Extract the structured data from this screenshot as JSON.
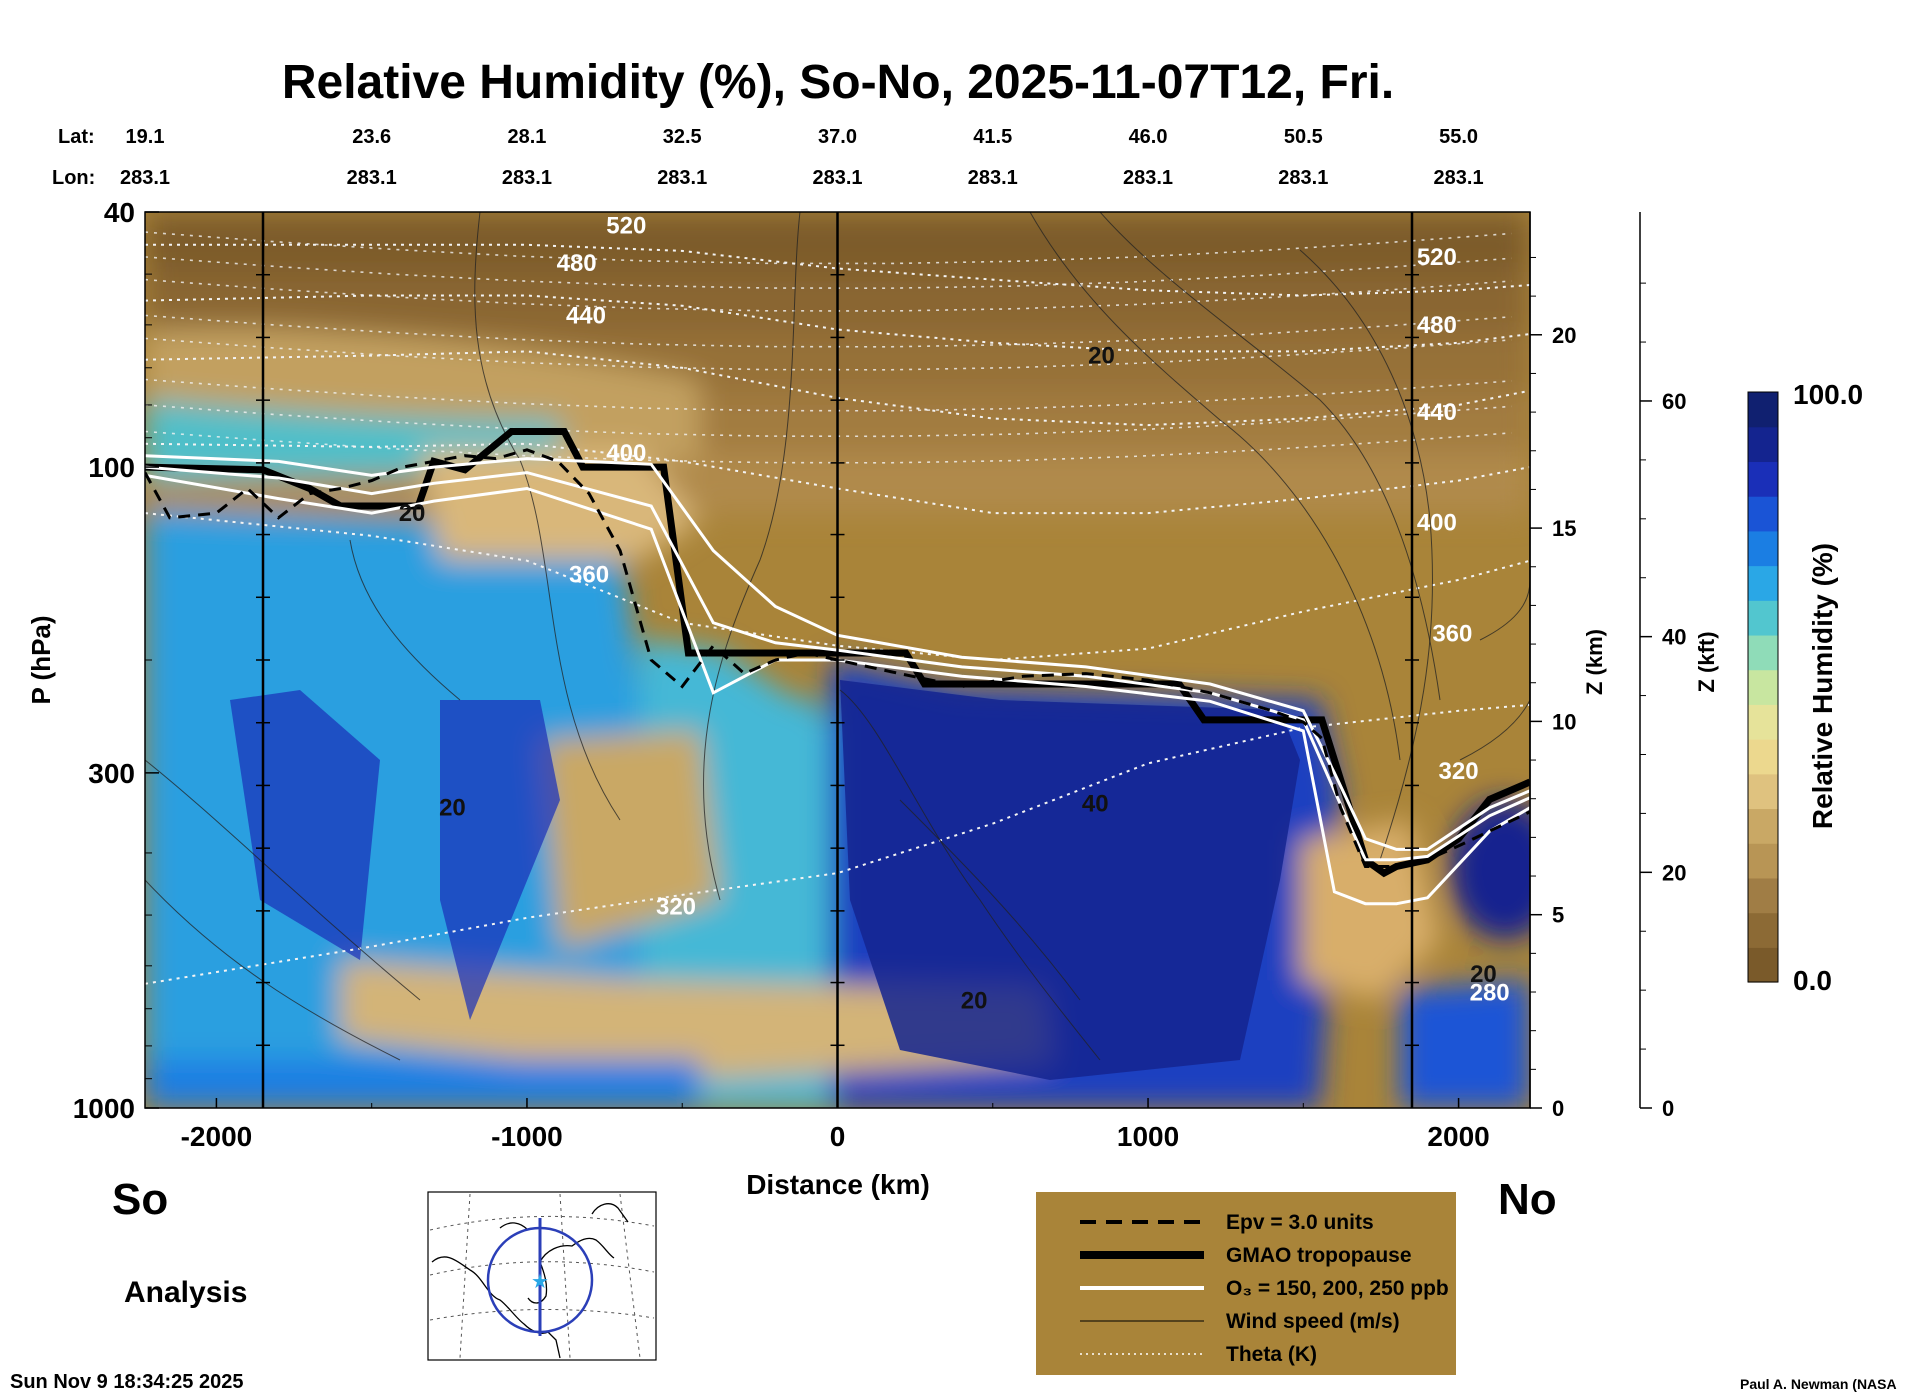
{
  "chart_data": {
    "type": "heatmap",
    "title": "Relative Humidity (%), So-No, 2025-11-07T12, Fri.",
    "xlabel": "Distance (km)",
    "ylabel": "P (hPa)",
    "z_km_label": "Z (km)",
    "z_kft_label": "Z (kft)",
    "xlim": [
      -2230,
      2230
    ],
    "ylim_hpa": [
      1000,
      40
    ],
    "y_scale": "log",
    "x_ticks": [
      -2000,
      -1000,
      0,
      1000,
      2000
    ],
    "x_tick_labels": [
      "-2000",
      "-1000",
      "0",
      "1000",
      "2000"
    ],
    "p_ticks": [
      1000,
      300,
      100,
      40
    ],
    "p_tick_labels": [
      "1000",
      "300",
      "100",
      "40"
    ],
    "z_km_ticks": [
      0,
      5,
      10,
      15,
      20
    ],
    "z_km_tick_labels": [
      "0",
      "5",
      "10",
      "15",
      "20"
    ],
    "z_kft_ticks": [
      0,
      20,
      40,
      60
    ],
    "z_kft_tick_labels": [
      "0",
      "20",
      "40",
      "60"
    ],
    "lat_label": "Lat:",
    "lon_label": "Lon:",
    "lat_values": [
      "19.1",
      "23.6",
      "28.1",
      "32.5",
      "37.0",
      "41.5",
      "46.0",
      "50.5",
      "55.0"
    ],
    "lon_values": [
      "283.1",
      "283.1",
      "283.1",
      "283.1",
      "283.1",
      "283.1",
      "283.1",
      "283.1",
      "283.1"
    ],
    "lat_lon_distances": [
      -2000,
      -1500,
      -1000,
      -500,
      0,
      500,
      1000,
      1500,
      2000
    ],
    "vertical_markers_km": [
      -1850,
      0,
      1850
    ],
    "colorbar": {
      "label": "Relative Humidity (%)",
      "min": 0.0,
      "max": 100.0,
      "min_label": "0.0",
      "max_label": "100.0",
      "colors": [
        "#7a5a2a",
        "#8c6a35",
        "#a07d45",
        "#b89555",
        "#c9a865",
        "#dfc27f",
        "#ecd88e",
        "#e6e39a",
        "#c8e6a0",
        "#8fdcb8",
        "#52c6cf",
        "#2aa7e6",
        "#1b7ee3",
        "#1a54d6",
        "#1a2fb8",
        "#14248f",
        "#102070"
      ]
    },
    "series": [
      {
        "name": "GMAO tropopause",
        "style": "thick-black",
        "x": [
          -2230,
          -1850,
          -1700,
          -1600,
          -1350,
          -1300,
          -1200,
          -1050,
          -880,
          -820,
          -560,
          -480,
          -200,
          0,
          220,
          280,
          600,
          1100,
          1180,
          1560,
          1640,
          1700,
          1760,
          1800,
          1900,
          2000,
          2100,
          2230
        ],
        "p": [
          100,
          101,
          108,
          115,
          115,
          98,
          101,
          88,
          88,
          100,
          100,
          195,
          195,
          195,
          195,
          218,
          218,
          218,
          248,
          248,
          330,
          410,
          430,
          420,
          410,
          380,
          330,
          310
        ]
      },
      {
        "name": "O3 = 150 ppb",
        "style": "white",
        "x": [
          -2230,
          -1800,
          -1500,
          -1300,
          -1000,
          -600,
          -400,
          -200,
          0,
          400,
          800,
          1200,
          1500,
          1600,
          1700,
          1800,
          1900,
          2100,
          2230
        ],
        "p": [
          96,
          98,
          103,
          100,
          97,
          99,
          135,
          165,
          183,
          198,
          205,
          218,
          240,
          300,
          380,
          395,
          395,
          340,
          320
        ]
      },
      {
        "name": "O3 = 200 ppb",
        "style": "white",
        "x": [
          -2230,
          -1800,
          -1500,
          -1300,
          -1000,
          -600,
          -400,
          -200,
          0,
          400,
          800,
          1200,
          1500,
          1600,
          1700,
          1800,
          1900,
          2100,
          2230
        ],
        "p": [
          100,
          104,
          110,
          106,
          102,
          115,
          175,
          188,
          193,
          205,
          212,
          225,
          248,
          320,
          410,
          410,
          405,
          350,
          328
        ]
      },
      {
        "name": "O3 = 250 ppb",
        "style": "white",
        "x": [
          -2230,
          -1800,
          -1500,
          -1300,
          -1000,
          -600,
          -400,
          -200,
          0,
          400,
          800,
          1200,
          1500,
          1600,
          1700,
          1800,
          1900,
          2100,
          2230
        ],
        "p": [
          103,
          112,
          118,
          113,
          108,
          125,
          225,
          200,
          200,
          212,
          220,
          232,
          258,
          460,
          480,
          480,
          470,
          370,
          340
        ]
      },
      {
        "name": "Epv = 3.0 units",
        "style": "dashed-black",
        "x": [
          -2230,
          -2150,
          -2000,
          -1900,
          -1800,
          -1700,
          -1600,
          -1500,
          -1400,
          -1300,
          -1200,
          -1100,
          -1000,
          -900,
          -800,
          -700,
          -600,
          -500,
          -400,
          -300,
          -200,
          -100,
          0,
          200,
          400,
          600,
          800,
          1000,
          1200,
          1400,
          1500,
          1560,
          1620,
          1700,
          1800,
          1900,
          2000,
          2230
        ],
        "p": [
          102,
          120,
          118,
          108,
          120,
          110,
          108,
          105,
          100,
          98,
          96,
          97,
          94,
          98,
          110,
          135,
          200,
          220,
          190,
          210,
          200,
          195,
          200,
          210,
          220,
          212,
          210,
          215,
          225,
          240,
          250,
          265,
          340,
          420,
          420,
          410,
          390,
          345
        ]
      },
      {
        "name": "Theta 320 K",
        "style": "dotted-white",
        "x": [
          -2230,
          -1500,
          -1000,
          -500,
          0,
          500,
          1000,
          1500,
          2000,
          2230
        ],
        "p": [
          640,
          560,
          505,
          465,
          430,
          360,
          290,
          255,
          240,
          235
        ]
      },
      {
        "name": "Theta 360 K",
        "style": "dotted-white",
        "x": [
          -2230,
          -1500,
          -1000,
          -500,
          0,
          500,
          1000,
          1500,
          2000,
          2230
        ],
        "p": [
          118,
          128,
          140,
          175,
          190,
          200,
          192,
          168,
          150,
          140
        ]
      },
      {
        "name": "Theta 400 K",
        "style": "dotted-white",
        "x": [
          -2230,
          -1500,
          -1000,
          -500,
          0,
          500,
          1000,
          1500,
          2000,
          2230
        ],
        "p": [
          92,
          93,
          92,
          98,
          108,
          118,
          118,
          112,
          105,
          100
        ]
      },
      {
        "name": "Theta 440 K",
        "style": "dotted-white",
        "x": [
          -2230,
          -1500,
          -1000,
          -500,
          0,
          500,
          1000,
          1500,
          2000,
          2230
        ],
        "p": [
          68,
          67,
          66,
          70,
          78,
          84,
          86,
          84,
          80,
          76
        ]
      },
      {
        "name": "Theta 480 K",
        "style": "dotted-white",
        "x": [
          -2230,
          -1500,
          -1000,
          -500,
          0,
          500,
          1000,
          1500,
          2000,
          2230
        ],
        "p": [
          55,
          54,
          54,
          56,
          61,
          64,
          66,
          66,
          64,
          62
        ]
      },
      {
        "name": "Theta 520 K",
        "style": "dotted-white",
        "x": [
          -2230,
          -1500,
          -1000,
          -500,
          0,
          500,
          1000,
          1500,
          2000,
          2230
        ],
        "p": [
          45,
          45,
          45,
          46,
          49,
          51,
          53,
          54,
          53,
          52
        ]
      }
    ],
    "annotations": [
      {
        "text": "520",
        "x": -680,
        "p": 42,
        "color": "#ffffff"
      },
      {
        "text": "480",
        "x": -840,
        "p": 48,
        "color": "#ffffff"
      },
      {
        "text": "440",
        "x": -810,
        "p": 58,
        "color": "#ffffff"
      },
      {
        "text": "400",
        "x": -680,
        "p": 95,
        "color": "#ffffff"
      },
      {
        "text": "360",
        "x": -800,
        "p": 147,
        "color": "#ffffff"
      },
      {
        "text": "320",
        "x": -520,
        "p": 485,
        "color": "#ffffff"
      },
      {
        "text": "520",
        "x": 1930,
        "p": 47,
        "color": "#ffffff"
      },
      {
        "text": "480",
        "x": 1930,
        "p": 60,
        "color": "#ffffff"
      },
      {
        "text": "440",
        "x": 1930,
        "p": 82,
        "color": "#ffffff"
      },
      {
        "text": "400",
        "x": 1930,
        "p": 122,
        "color": "#ffffff"
      },
      {
        "text": "360",
        "x": 1980,
        "p": 182,
        "color": "#ffffff"
      },
      {
        "text": "320",
        "x": 2000,
        "p": 298,
        "color": "#ffffff"
      },
      {
        "text": "280",
        "x": 2100,
        "p": 660,
        "color": "#ffffff"
      },
      {
        "text": "20",
        "x": 850,
        "p": 67,
        "color": "#111111"
      },
      {
        "text": "20",
        "x": -1370,
        "p": 118,
        "color": "#111111"
      },
      {
        "text": "20",
        "x": -1240,
        "p": 340,
        "color": "#111111"
      },
      {
        "text": "40",
        "x": 830,
        "p": 335,
        "color": "#111111"
      },
      {
        "text": "20",
        "x": 440,
        "p": 680,
        "color": "#111111"
      },
      {
        "text": "20",
        "x": 2080,
        "p": 618,
        "color": "#111111"
      }
    ]
  },
  "labels": {
    "left_end": "So",
    "right_end": "No",
    "analysis": "Analysis",
    "timestamp": "Sun Nov  9 18:34:25 2025",
    "credit": "Paul A. Newman (NASA"
  },
  "legend": {
    "items": [
      {
        "label": "Epv = 3.0 units",
        "style": "dashed"
      },
      {
        "label": "GMAO tropopause",
        "style": "thick"
      },
      {
        "label": "O₃ = 150, 200, 250 ppb",
        "style": "white"
      },
      {
        "label": "Wind speed (m/s)",
        "style": "thin"
      },
      {
        "label": "Theta (K)",
        "style": "dotted"
      }
    ]
  },
  "colors": {
    "legend_bg": "#a98439",
    "ice_dark": "#102070"
  }
}
